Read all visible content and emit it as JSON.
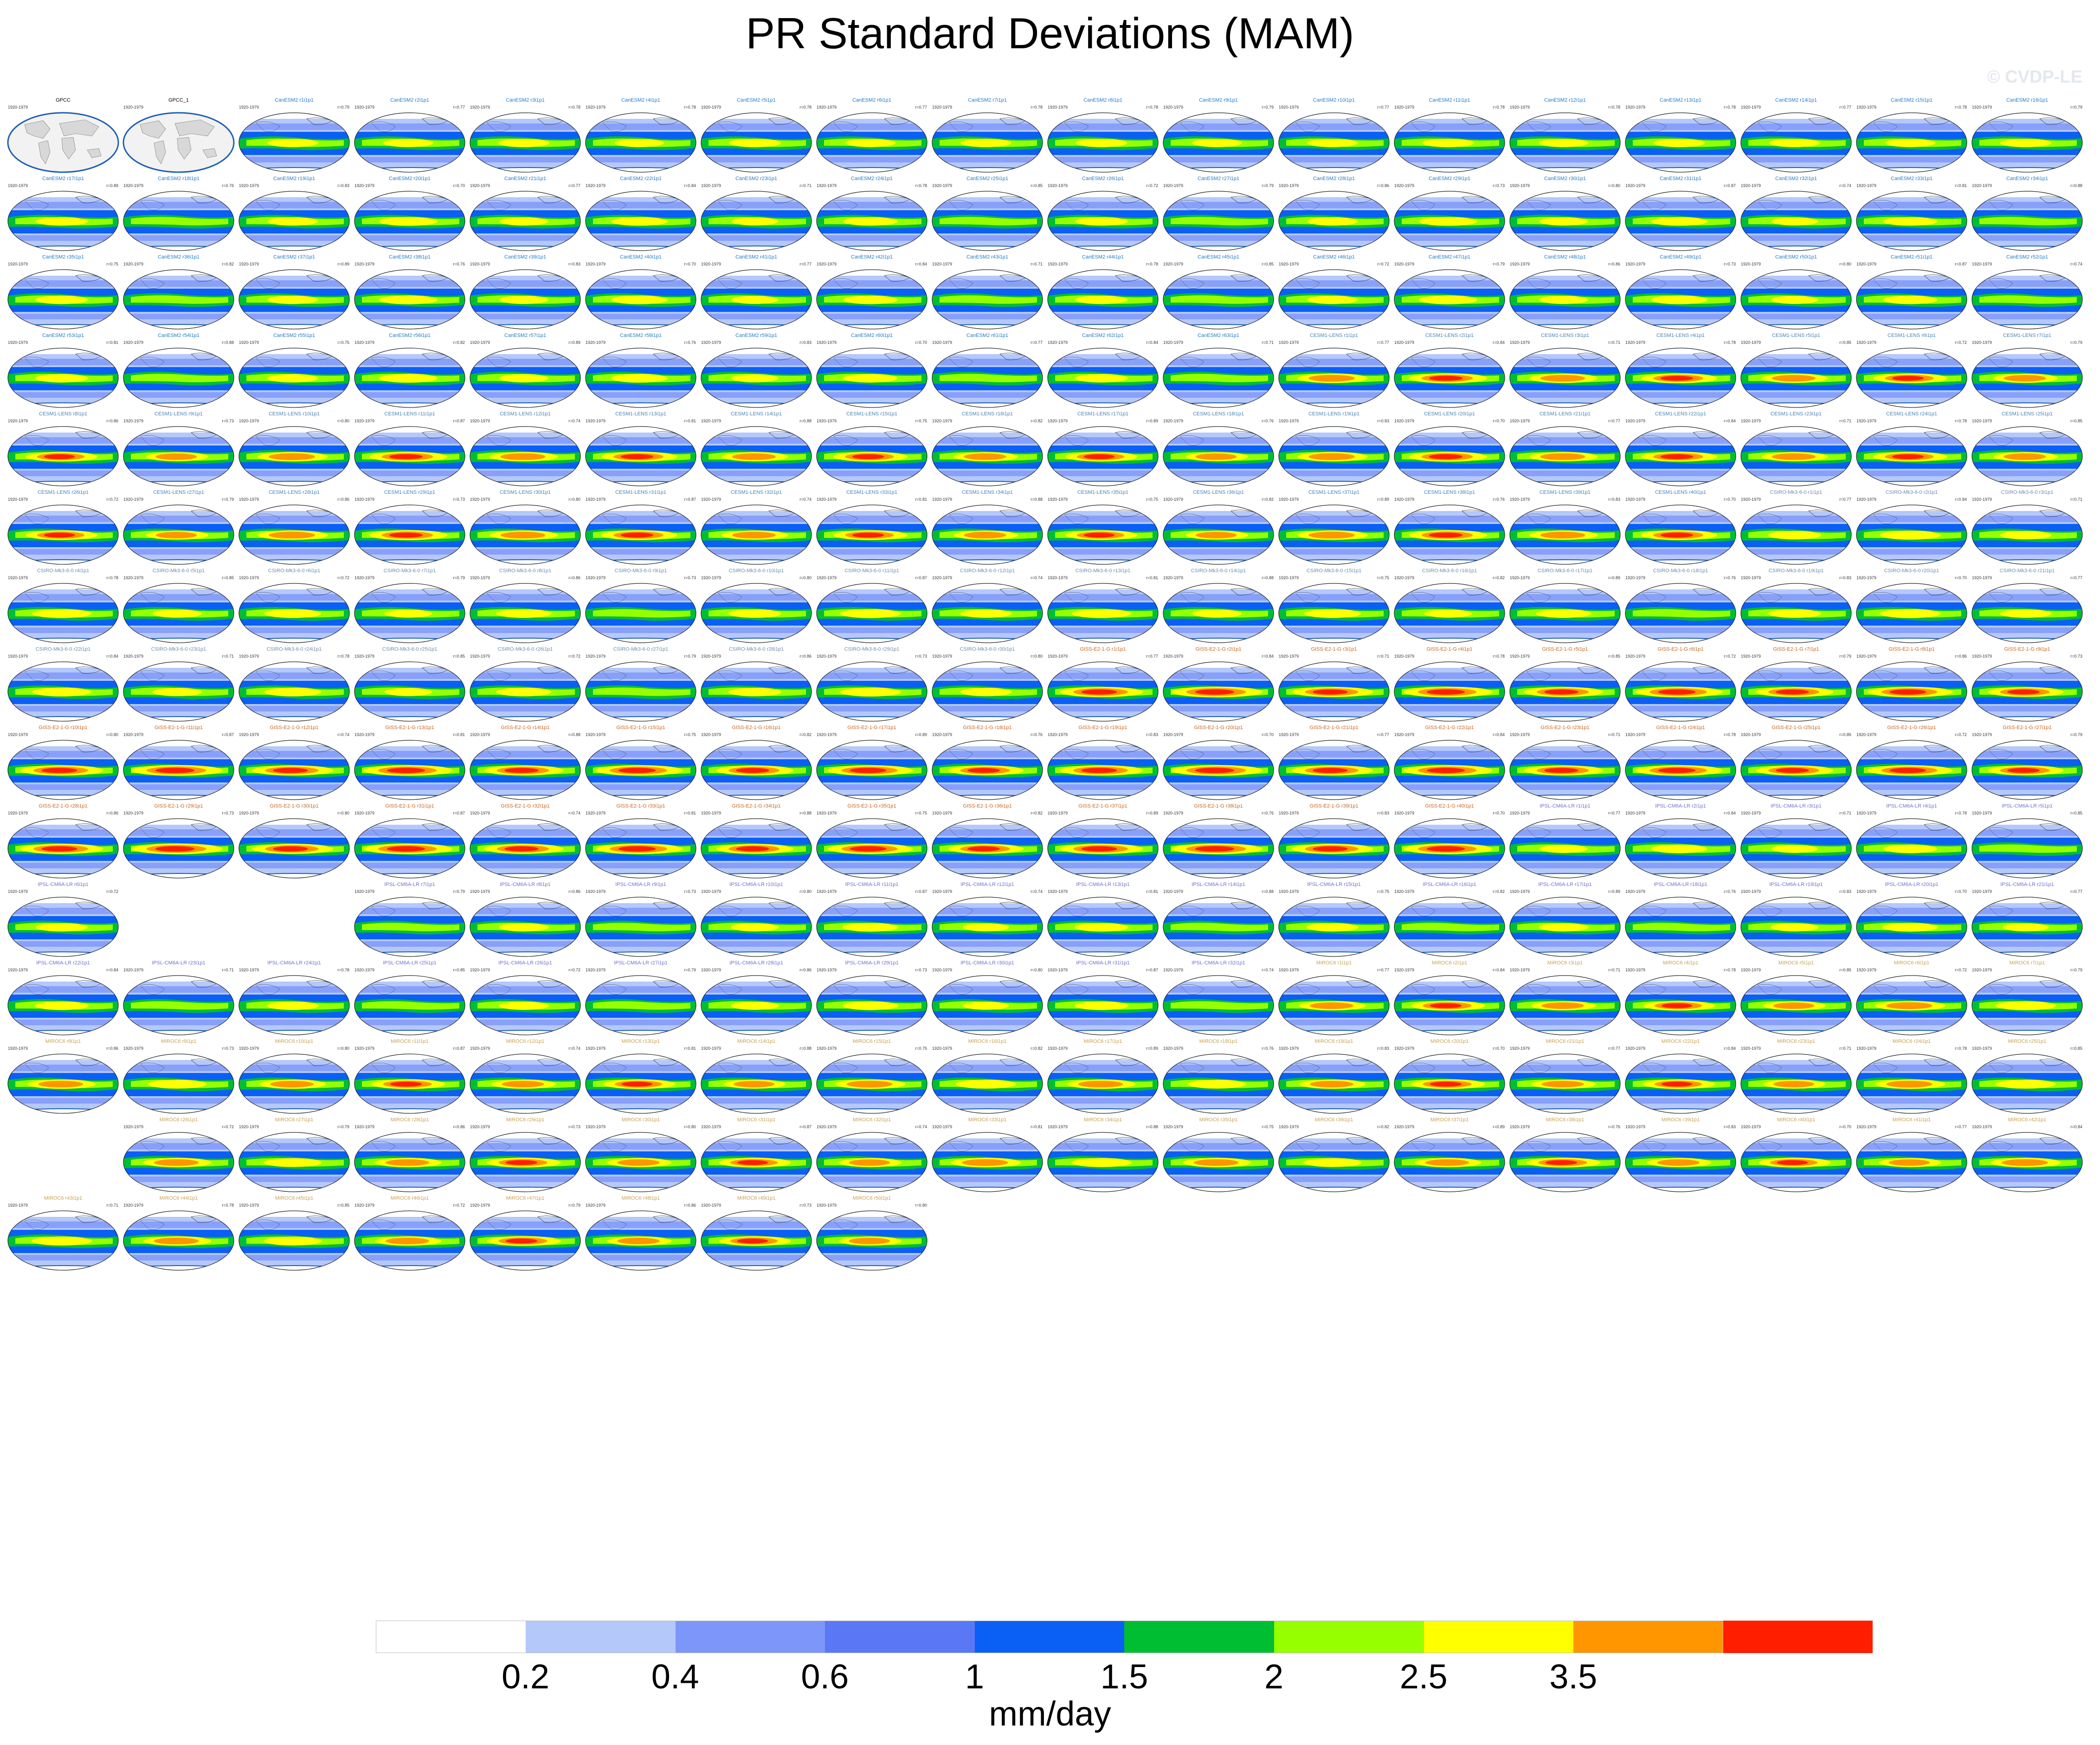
{
  "title": "PR Standard Deviations (MAM)",
  "watermark": "© CVDP-LE",
  "panel_years": "1920-1979",
  "colors": {
    "levels": [
      "#ffffff",
      "#b4c8fa",
      "#7d96fa",
      "#5a78f5",
      "#0a5ff5",
      "#00be32",
      "#96ff00",
      "#ffff00",
      "#ff9600",
      "#ff1e00"
    ],
    "title_obs": "#000000",
    "title_canesm": "#1e78c8",
    "title_cesm": "#4682b4",
    "title_csiro": "#6e8caa",
    "title_giss": "#c8641e",
    "title_ipsl": "#6e6ed2",
    "title_miroc": "#c8a050"
  },
  "chart_data": {
    "type": "heatmap",
    "title": "PR Standard Deviations (MAM)",
    "variable": "PR",
    "season": "MAM",
    "period": "1920-1979",
    "projection": "Robinson (global)",
    "colorbar": {
      "unit": "mm/day",
      "levels": [
        0.2,
        0.4,
        0.6,
        1,
        1.5,
        2,
        2.5,
        3.5
      ],
      "tick_labels": [
        "0.2",
        "0.4",
        "0.6",
        "1",
        "1.5",
        "2",
        "2.5",
        "3.5"
      ],
      "colors": [
        "#ffffff",
        "#b4c8fa",
        "#7d96fa",
        "#5a78f5",
        "#0a5ff5",
        "#00be32",
        "#96ff00",
        "#ffff00",
        "#ff9600",
        "#ff1e00"
      ]
    },
    "grid": {
      "rows": 18,
      "cols": 18,
      "final_row_cols": [
        7,
        8,
        9
      ]
    },
    "panels": [
      {
        "title": "GPCC",
        "group": "obs"
      },
      {
        "title": "GPCC_1",
        "group": "obs"
      },
      {
        "title": "CanESM2 r1i1p1",
        "group": "canesm",
        "r": "r=0.79",
        "intensity": 0.78
      },
      {
        "title": "CanESM2 r2i1p1",
        "group": "canesm",
        "r": "r=0.77",
        "intensity": 0.77
      },
      {
        "title": "CanESM2 r3i1p1",
        "group": "canesm",
        "r": "r=0.78",
        "intensity": 0.79
      },
      {
        "title": "CanESM2 r4i1p1",
        "group": "canesm",
        "r": "r=0.78",
        "intensity": 0.76
      },
      {
        "title": "CanESM2 r5i1p1",
        "group": "canesm",
        "r": "r=0.78",
        "intensity": 0.8
      },
      {
        "title": "CanESM2 r6i1p1",
        "group": "canesm",
        "r": "r=0.77",
        "intensity": 0.77
      },
      {
        "title": "CanESM2 r7i1p1",
        "group": "canesm",
        "r": "r=0.78",
        "intensity": 0.78
      },
      {
        "title": "CanESM2 r8i1p1",
        "group": "canesm",
        "r": "r=0.78",
        "intensity": 0.79
      },
      {
        "title": "CanESM2 r9i1p1",
        "group": "canesm",
        "r": "r=0.79",
        "intensity": 0.77
      },
      {
        "title": "CanESM2 r10i1p1",
        "group": "canesm",
        "r": "r=0.77",
        "intensity": 0.78
      },
      {
        "title": "CanESM2 r11i1p1",
        "group": "canesm",
        "r": "r=0.78",
        "intensity": 0.8
      },
      {
        "title": "CanESM2 r12i1p1",
        "group": "canesm",
        "r": "r=0.78",
        "intensity": 0.76
      },
      {
        "title": "CanESM2 r13i1p1",
        "group": "canesm",
        "r": "r=0.78",
        "intensity": 0.79
      },
      {
        "title": "CanESM2 r14i1p1",
        "group": "canesm",
        "r": "r=0.77",
        "intensity": 0.78
      },
      {
        "title": "CanESM2 r15i1p1",
        "group": "canesm",
        "r": "r=0.78",
        "intensity": 0.77
      },
      {
        "title": "CanESM2 r16i1p1",
        "group": "canesm",
        "r": "r=0.79",
        "intensity": 0.79
      }
    ]
  },
  "group_sequence": [
    {
      "group": "canesm",
      "label": "CanESM2",
      "start": 17,
      "count": 47,
      "suffix": "i1p1",
      "base_intensity": 0.78
    },
    {
      "group": "cesm",
      "label": "CESM1-LENS",
      "start": 1,
      "count": 40,
      "suffix": "i1p1",
      "base_intensity": 1.08
    },
    {
      "group": "csiro",
      "label": "CSIRO-Mk3-6-0",
      "start": 1,
      "count": 30,
      "suffix": "i1p1",
      "base_intensity": 0.82
    },
    {
      "group": "giss",
      "label": "GISS-E2-1-G",
      "start": 1,
      "count": 40,
      "suffix": "i1p1",
      "base_intensity": 1.28
    },
    {
      "group": "ipsl",
      "label": "IPSL-CM6A-LR",
      "start": 1,
      "count": 32,
      "suffix": "i1p1",
      "base_intensity": 0.74
    },
    {
      "group": "miroc",
      "label": "MIROC6",
      "start": 1,
      "count": 50,
      "suffix": "i1p1",
      "base_intensity": 1.02
    }
  ]
}
